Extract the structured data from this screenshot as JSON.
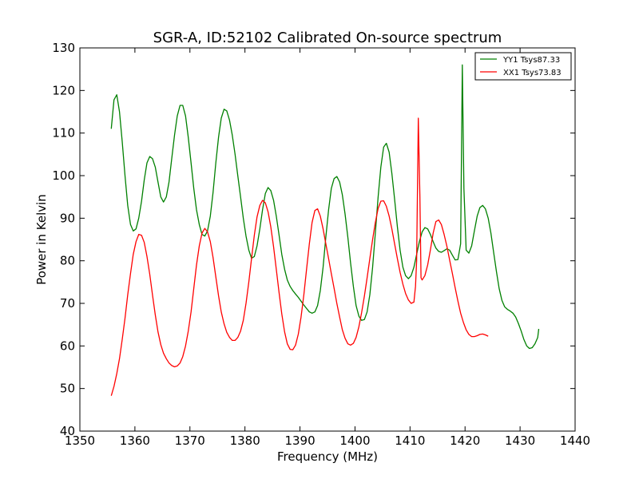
{
  "chart_data": {
    "type": "line",
    "title": "SGR-A, ID:52102 Calibrated On-source spectrum",
    "xlabel": "Frequency (MHz)",
    "ylabel": "Power in Kelvin",
    "xlim": [
      1350,
      1440
    ],
    "ylim": [
      40,
      130
    ],
    "x_ticks": [
      1350,
      1360,
      1370,
      1380,
      1390,
      1400,
      1410,
      1420,
      1430,
      1440
    ],
    "y_ticks": [
      40,
      50,
      60,
      70,
      80,
      90,
      100,
      110,
      120,
      130
    ],
    "grid": false,
    "legend_position": "top-right",
    "series": [
      {
        "name": "YY1 Tsys87.33",
        "color": "#008000",
        "points": [
          [
            1355.7,
            111
          ],
          [
            1356.2,
            117.8
          ],
          [
            1356.7,
            119
          ],
          [
            1357.2,
            115
          ],
          [
            1357.7,
            108
          ],
          [
            1358.2,
            100
          ],
          [
            1358.7,
            93
          ],
          [
            1359.2,
            88.5
          ],
          [
            1359.7,
            87
          ],
          [
            1360.2,
            87.5
          ],
          [
            1360.7,
            90
          ],
          [
            1361.2,
            94
          ],
          [
            1361.7,
            99
          ],
          [
            1362.2,
            103
          ],
          [
            1362.7,
            104.5
          ],
          [
            1363.2,
            104
          ],
          [
            1363.7,
            102
          ],
          [
            1364.2,
            98.5
          ],
          [
            1364.7,
            95
          ],
          [
            1365.2,
            93.8
          ],
          [
            1365.7,
            95
          ],
          [
            1366.2,
            98.5
          ],
          [
            1366.7,
            104
          ],
          [
            1367.2,
            109.5
          ],
          [
            1367.7,
            114
          ],
          [
            1368.2,
            116.5
          ],
          [
            1368.7,
            116.5
          ],
          [
            1369.2,
            114
          ],
          [
            1369.7,
            109
          ],
          [
            1370.2,
            103
          ],
          [
            1370.7,
            97
          ],
          [
            1371.2,
            92
          ],
          [
            1371.7,
            88.5
          ],
          [
            1372.2,
            86.2
          ],
          [
            1372.7,
            85.8
          ],
          [
            1373.2,
            87
          ],
          [
            1373.7,
            90.5
          ],
          [
            1374.2,
            96
          ],
          [
            1374.7,
            103
          ],
          [
            1375.2,
            109
          ],
          [
            1375.7,
            113.5
          ],
          [
            1376.2,
            115.6
          ],
          [
            1376.7,
            115.2
          ],
          [
            1377.2,
            113
          ],
          [
            1377.7,
            109.5
          ],
          [
            1378.2,
            105
          ],
          [
            1378.7,
            100
          ],
          [
            1379.2,
            95
          ],
          [
            1379.7,
            90
          ],
          [
            1380.2,
            85.8
          ],
          [
            1380.7,
            82.5
          ],
          [
            1381.2,
            80.6
          ],
          [
            1381.7,
            81
          ],
          [
            1382.2,
            83.5
          ],
          [
            1382.7,
            87.5
          ],
          [
            1383.2,
            92
          ],
          [
            1383.7,
            95.8
          ],
          [
            1384.2,
            97.2
          ],
          [
            1384.7,
            96.5
          ],
          [
            1385.2,
            94.2
          ],
          [
            1385.7,
            90.5
          ],
          [
            1386.2,
            86
          ],
          [
            1386.7,
            81.5
          ],
          [
            1387.2,
            78
          ],
          [
            1387.7,
            75.5
          ],
          [
            1388.2,
            74
          ],
          [
            1388.7,
            73
          ],
          [
            1389.2,
            72.2
          ],
          [
            1389.7,
            71.4
          ],
          [
            1390.2,
            70.5
          ],
          [
            1390.7,
            69.6
          ],
          [
            1391.2,
            68.8
          ],
          [
            1391.7,
            68
          ],
          [
            1392.2,
            67.7
          ],
          [
            1392.7,
            68
          ],
          [
            1393.2,
            69.5
          ],
          [
            1393.7,
            73
          ],
          [
            1394.2,
            78.5
          ],
          [
            1394.7,
            85.5
          ],
          [
            1395.2,
            92
          ],
          [
            1395.7,
            97
          ],
          [
            1396.2,
            99.3
          ],
          [
            1396.7,
            99.8
          ],
          [
            1397.2,
            98.5
          ],
          [
            1397.7,
            95.5
          ],
          [
            1398.2,
            91
          ],
          [
            1398.7,
            85.5
          ],
          [
            1399.2,
            79.5
          ],
          [
            1399.7,
            74
          ],
          [
            1400.2,
            69.5
          ],
          [
            1400.7,
            67
          ],
          [
            1401.2,
            66
          ],
          [
            1401.7,
            66.2
          ],
          [
            1402.2,
            68
          ],
          [
            1402.7,
            72
          ],
          [
            1403.2,
            78.5
          ],
          [
            1403.7,
            86.5
          ],
          [
            1404.2,
            95
          ],
          [
            1404.7,
            102
          ],
          [
            1405.2,
            106.7
          ],
          [
            1405.7,
            107.6
          ],
          [
            1406.2,
            105.5
          ],
          [
            1406.7,
            100.5
          ],
          [
            1407.2,
            94.5
          ],
          [
            1407.7,
            88
          ],
          [
            1408.2,
            82.5
          ],
          [
            1408.7,
            78.5
          ],
          [
            1409.2,
            76.5
          ],
          [
            1409.7,
            75.8
          ],
          [
            1410.2,
            76.5
          ],
          [
            1410.7,
            78.5
          ],
          [
            1411.2,
            81.5
          ],
          [
            1411.7,
            84.5
          ],
          [
            1412.2,
            86.8
          ],
          [
            1412.7,
            87.8
          ],
          [
            1413.2,
            87.5
          ],
          [
            1413.7,
            86.2
          ],
          [
            1414.2,
            84.5
          ],
          [
            1414.7,
            83
          ],
          [
            1415.2,
            82.2
          ],
          [
            1415.7,
            82
          ],
          [
            1416.2,
            82.4
          ],
          [
            1416.7,
            82.8
          ],
          [
            1417.2,
            82.5
          ],
          [
            1417.7,
            81.3
          ],
          [
            1418.2,
            80.2
          ],
          [
            1418.7,
            80.3
          ],
          [
            1419.2,
            84
          ],
          [
            1419.5,
            126
          ],
          [
            1419.8,
            97
          ],
          [
            1420.2,
            82.5
          ],
          [
            1420.7,
            81.8
          ],
          [
            1421.2,
            83.5
          ],
          [
            1421.7,
            87
          ],
          [
            1422.2,
            90.5
          ],
          [
            1422.7,
            92.5
          ],
          [
            1423.2,
            93
          ],
          [
            1423.7,
            92.2
          ],
          [
            1424.2,
            90
          ],
          [
            1424.7,
            86.5
          ],
          [
            1425.2,
            82
          ],
          [
            1425.7,
            77.5
          ],
          [
            1426.2,
            73.5
          ],
          [
            1426.7,
            70.7
          ],
          [
            1427.2,
            69.2
          ],
          [
            1427.7,
            68.6
          ],
          [
            1428.2,
            68.2
          ],
          [
            1428.7,
            67.7
          ],
          [
            1429.2,
            66.8
          ],
          [
            1429.7,
            65.3
          ],
          [
            1430.2,
            63.5
          ],
          [
            1430.7,
            61.5
          ],
          [
            1431.2,
            60
          ],
          [
            1431.7,
            59.4
          ],
          [
            1432.2,
            59.6
          ],
          [
            1432.7,
            60.5
          ],
          [
            1433.2,
            62
          ],
          [
            1433.4,
            64
          ]
        ]
      },
      {
        "name": "XX1 Tsys73.83",
        "color": "#ff0000",
        "points": [
          [
            1355.7,
            48.3
          ],
          [
            1356.2,
            50.5
          ],
          [
            1356.7,
            53.5
          ],
          [
            1357.2,
            57
          ],
          [
            1357.7,
            61.5
          ],
          [
            1358.2,
            66.5
          ],
          [
            1358.7,
            72
          ],
          [
            1359.2,
            77
          ],
          [
            1359.7,
            81.5
          ],
          [
            1360.2,
            84.5
          ],
          [
            1360.7,
            86.2
          ],
          [
            1361.2,
            86
          ],
          [
            1361.7,
            84.3
          ],
          [
            1362.2,
            81
          ],
          [
            1362.7,
            76.8
          ],
          [
            1363.2,
            72
          ],
          [
            1363.7,
            67.3
          ],
          [
            1364.2,
            63.3
          ],
          [
            1364.7,
            60.3
          ],
          [
            1365.2,
            58.3
          ],
          [
            1365.7,
            57
          ],
          [
            1366.2,
            56
          ],
          [
            1366.7,
            55.4
          ],
          [
            1367.2,
            55.1
          ],
          [
            1367.7,
            55.3
          ],
          [
            1368.2,
            56
          ],
          [
            1368.7,
            57.5
          ],
          [
            1369.2,
            60
          ],
          [
            1369.7,
            63.5
          ],
          [
            1370.2,
            68
          ],
          [
            1370.7,
            73.5
          ],
          [
            1371.2,
            79
          ],
          [
            1371.7,
            83.5
          ],
          [
            1372.2,
            86.5
          ],
          [
            1372.7,
            87.6
          ],
          [
            1373.2,
            86.8
          ],
          [
            1373.7,
            84.5
          ],
          [
            1374.2,
            80.8
          ],
          [
            1374.7,
            76.2
          ],
          [
            1375.2,
            71.8
          ],
          [
            1375.7,
            68
          ],
          [
            1376.2,
            65.2
          ],
          [
            1376.7,
            63.2
          ],
          [
            1377.2,
            62
          ],
          [
            1377.7,
            61.3
          ],
          [
            1378.2,
            61.3
          ],
          [
            1378.7,
            62
          ],
          [
            1379.2,
            63.5
          ],
          [
            1379.7,
            66
          ],
          [
            1380.2,
            70
          ],
          [
            1380.7,
            75
          ],
          [
            1381.2,
            80.5
          ],
          [
            1381.7,
            86
          ],
          [
            1382.2,
            90.3
          ],
          [
            1382.7,
            93
          ],
          [
            1383.2,
            94.2
          ],
          [
            1383.7,
            93.6
          ],
          [
            1384.2,
            91.5
          ],
          [
            1384.7,
            88
          ],
          [
            1385.2,
            83.3
          ],
          [
            1385.7,
            78
          ],
          [
            1386.2,
            72.5
          ],
          [
            1386.7,
            67.5
          ],
          [
            1387.2,
            63.3
          ],
          [
            1387.7,
            60.5
          ],
          [
            1388.2,
            59.2
          ],
          [
            1388.7,
            59.1
          ],
          [
            1389.2,
            60.2
          ],
          [
            1389.7,
            62.8
          ],
          [
            1390.2,
            66.8
          ],
          [
            1390.7,
            72
          ],
          [
            1391.2,
            78
          ],
          [
            1391.7,
            84
          ],
          [
            1392.2,
            89
          ],
          [
            1392.7,
            91.8
          ],
          [
            1393.2,
            92.2
          ],
          [
            1393.7,
            90.5
          ],
          [
            1394.2,
            87.5
          ],
          [
            1394.7,
            84
          ],
          [
            1395.2,
            80.5
          ],
          [
            1395.7,
            77
          ],
          [
            1396.2,
            73.5
          ],
          [
            1396.7,
            70
          ],
          [
            1397.2,
            66.8
          ],
          [
            1397.7,
            63.8
          ],
          [
            1398.2,
            61.8
          ],
          [
            1398.7,
            60.5
          ],
          [
            1399.2,
            60.2
          ],
          [
            1399.7,
            60.6
          ],
          [
            1400.2,
            62
          ],
          [
            1400.7,
            64.5
          ],
          [
            1401.2,
            67.8
          ],
          [
            1401.7,
            71.7
          ],
          [
            1402.2,
            76
          ],
          [
            1402.7,
            80.5
          ],
          [
            1403.2,
            85
          ],
          [
            1403.7,
            89
          ],
          [
            1404.2,
            92.3
          ],
          [
            1404.7,
            94
          ],
          [
            1405.2,
            94.1
          ],
          [
            1405.7,
            92.8
          ],
          [
            1406.2,
            90.5
          ],
          [
            1406.7,
            87.5
          ],
          [
            1407.2,
            84
          ],
          [
            1407.7,
            80.5
          ],
          [
            1408.2,
            77.3
          ],
          [
            1408.7,
            74.5
          ],
          [
            1409.2,
            72.3
          ],
          [
            1409.7,
            70.8
          ],
          [
            1410.2,
            70
          ],
          [
            1410.7,
            70.3
          ],
          [
            1411.0,
            74
          ],
          [
            1411.2,
            80
          ],
          [
            1411.5,
            113.5
          ],
          [
            1411.8,
            95
          ],
          [
            1412.0,
            76
          ],
          [
            1412.2,
            75.5
          ],
          [
            1412.7,
            76.5
          ],
          [
            1413.2,
            79
          ],
          [
            1413.7,
            82.5
          ],
          [
            1414.2,
            86.5
          ],
          [
            1414.7,
            89.2
          ],
          [
            1415.2,
            89.6
          ],
          [
            1415.7,
            88.5
          ],
          [
            1416.2,
            86.2
          ],
          [
            1416.7,
            83.4
          ],
          [
            1417.2,
            80.2
          ],
          [
            1417.7,
            77
          ],
          [
            1418.2,
            73.7
          ],
          [
            1418.7,
            70.5
          ],
          [
            1419.2,
            67.7
          ],
          [
            1419.7,
            65.5
          ],
          [
            1420.2,
            63.8
          ],
          [
            1420.7,
            62.7
          ],
          [
            1421.2,
            62.2
          ],
          [
            1421.7,
            62.2
          ],
          [
            1422.2,
            62.4
          ],
          [
            1422.7,
            62.7
          ],
          [
            1423.2,
            62.8
          ],
          [
            1423.7,
            62.6
          ],
          [
            1424.2,
            62.3
          ]
        ]
      }
    ]
  }
}
